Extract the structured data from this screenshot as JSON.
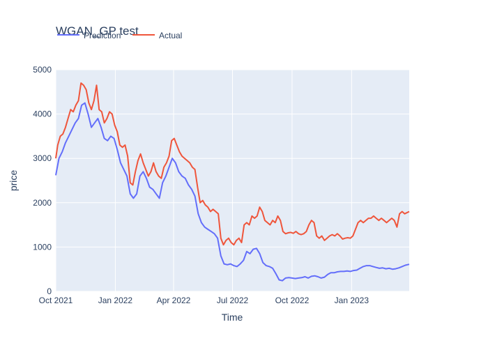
{
  "chart_data": {
    "type": "line",
    "title": "WGAN_GP test",
    "xlabel": "Time",
    "ylabel": "price",
    "x_tick_labels": [
      "Oct 2021",
      "Jan 2022",
      "Apr 2022",
      "Jul 2022",
      "Oct 2022",
      "Jan 2023"
    ],
    "x_tick_dates": [
      "2021-10-01",
      "2022-01-01",
      "2022-04-01",
      "2022-07-01",
      "2022-10-01",
      "2023-01-01"
    ],
    "x_range": [
      "2021-10-01",
      "2023-03-31"
    ],
    "ylim": [
      0,
      5000
    ],
    "y_ticks": [
      0,
      1000,
      2000,
      3000,
      4000,
      5000
    ],
    "grid": true,
    "legend_position": "top-left, horizontal",
    "colors": {
      "plot_bg": "#e5ecf6",
      "grid": "#ffffff",
      "Prediction": "#636efa",
      "Actual": "#ef553b"
    },
    "series": [
      {
        "name": "Prediction",
        "points": [
          [
            "2021-10-01",
            2620
          ],
          [
            "2021-10-06",
            3000
          ],
          [
            "2021-10-11",
            3150
          ],
          [
            "2021-10-16",
            3350
          ],
          [
            "2021-10-21",
            3500
          ],
          [
            "2021-10-26",
            3650
          ],
          [
            "2021-10-31",
            3800
          ],
          [
            "2021-11-05",
            3900
          ],
          [
            "2021-11-10",
            4200
          ],
          [
            "2021-11-15",
            4250
          ],
          [
            "2021-11-20",
            4000
          ],
          [
            "2021-11-25",
            3700
          ],
          [
            "2021-11-30",
            3800
          ],
          [
            "2021-12-05",
            3900
          ],
          [
            "2021-12-10",
            3700
          ],
          [
            "2021-12-15",
            3450
          ],
          [
            "2021-12-20",
            3400
          ],
          [
            "2021-12-25",
            3500
          ],
          [
            "2021-12-30",
            3450
          ],
          [
            "2022-01-04",
            3200
          ],
          [
            "2022-01-09",
            2900
          ],
          [
            "2022-01-14",
            2750
          ],
          [
            "2022-01-19",
            2600
          ],
          [
            "2022-01-24",
            2200
          ],
          [
            "2022-01-29",
            2100
          ],
          [
            "2022-02-03",
            2200
          ],
          [
            "2022-02-08",
            2600
          ],
          [
            "2022-02-13",
            2700
          ],
          [
            "2022-02-18",
            2550
          ],
          [
            "2022-02-23",
            2350
          ],
          [
            "2022-02-28",
            2300
          ],
          [
            "2022-03-05",
            2200
          ],
          [
            "2022-03-10",
            2100
          ],
          [
            "2022-03-15",
            2450
          ],
          [
            "2022-03-20",
            2600
          ],
          [
            "2022-03-25",
            2800
          ],
          [
            "2022-03-30",
            3000
          ],
          [
            "2022-04-04",
            2900
          ],
          [
            "2022-04-09",
            2700
          ],
          [
            "2022-04-14",
            2600
          ],
          [
            "2022-04-19",
            2550
          ],
          [
            "2022-04-24",
            2400
          ],
          [
            "2022-04-29",
            2300
          ],
          [
            "2022-05-04",
            2150
          ],
          [
            "2022-05-09",
            1750
          ],
          [
            "2022-05-14",
            1550
          ],
          [
            "2022-05-19",
            1450
          ],
          [
            "2022-05-24",
            1400
          ],
          [
            "2022-05-29",
            1350
          ],
          [
            "2022-06-03",
            1300
          ],
          [
            "2022-06-08",
            1200
          ],
          [
            "2022-06-13",
            800
          ],
          [
            "2022-06-18",
            620
          ],
          [
            "2022-06-23",
            600
          ],
          [
            "2022-06-28",
            620
          ],
          [
            "2022-07-03",
            580
          ],
          [
            "2022-07-08",
            560
          ],
          [
            "2022-07-13",
            620
          ],
          [
            "2022-07-18",
            700
          ],
          [
            "2022-07-23",
            900
          ],
          [
            "2022-07-28",
            850
          ],
          [
            "2022-08-02",
            950
          ],
          [
            "2022-08-07",
            970
          ],
          [
            "2022-08-12",
            850
          ],
          [
            "2022-08-17",
            650
          ],
          [
            "2022-08-22",
            580
          ],
          [
            "2022-08-27",
            560
          ],
          [
            "2022-09-01",
            520
          ],
          [
            "2022-09-06",
            400
          ],
          [
            "2022-09-11",
            260
          ],
          [
            "2022-09-16",
            240
          ],
          [
            "2022-09-21",
            300
          ],
          [
            "2022-09-26",
            310
          ],
          [
            "2022-10-01",
            300
          ],
          [
            "2022-10-06",
            290
          ],
          [
            "2022-10-11",
            300
          ],
          [
            "2022-10-16",
            310
          ],
          [
            "2022-10-21",
            330
          ],
          [
            "2022-10-26",
            300
          ],
          [
            "2022-10-31",
            340
          ],
          [
            "2022-11-05",
            350
          ],
          [
            "2022-11-10",
            330
          ],
          [
            "2022-11-15",
            300
          ],
          [
            "2022-11-20",
            320
          ],
          [
            "2022-11-25",
            380
          ],
          [
            "2022-11-30",
            420
          ],
          [
            "2022-12-05",
            420
          ],
          [
            "2022-12-10",
            440
          ],
          [
            "2022-12-15",
            450
          ],
          [
            "2022-12-20",
            450
          ],
          [
            "2022-12-25",
            460
          ],
          [
            "2022-12-30",
            450
          ],
          [
            "2023-01-04",
            470
          ],
          [
            "2023-01-09",
            480
          ],
          [
            "2023-01-14",
            520
          ],
          [
            "2023-01-19",
            560
          ],
          [
            "2023-01-24",
            580
          ],
          [
            "2023-01-29",
            580
          ],
          [
            "2023-02-03",
            560
          ],
          [
            "2023-02-08",
            540
          ],
          [
            "2023-02-13",
            520
          ],
          [
            "2023-02-18",
            530
          ],
          [
            "2023-02-23",
            510
          ],
          [
            "2023-02-28",
            520
          ],
          [
            "2023-03-05",
            500
          ],
          [
            "2023-03-10",
            510
          ],
          [
            "2023-03-15",
            530
          ],
          [
            "2023-03-20",
            560
          ],
          [
            "2023-03-25",
            590
          ],
          [
            "2023-03-31",
            610
          ]
        ]
      },
      {
        "name": "Actual",
        "points": [
          [
            "2021-10-01",
            3000
          ],
          [
            "2021-10-04",
            3300
          ],
          [
            "2021-10-08",
            3500
          ],
          [
            "2021-10-12",
            3550
          ],
          [
            "2021-10-16",
            3700
          ],
          [
            "2021-10-20",
            3900
          ],
          [
            "2021-10-24",
            4100
          ],
          [
            "2021-10-28",
            4050
          ],
          [
            "2021-11-01",
            4200
          ],
          [
            "2021-11-05",
            4300
          ],
          [
            "2021-11-09",
            4700
          ],
          [
            "2021-11-13",
            4650
          ],
          [
            "2021-11-17",
            4550
          ],
          [
            "2021-11-21",
            4250
          ],
          [
            "2021-11-25",
            4100
          ],
          [
            "2021-11-29",
            4300
          ],
          [
            "2021-12-03",
            4650
          ],
          [
            "2021-12-07",
            4100
          ],
          [
            "2021-12-11",
            4050
          ],
          [
            "2021-12-15",
            3800
          ],
          [
            "2021-12-19",
            3900
          ],
          [
            "2021-12-23",
            4050
          ],
          [
            "2021-12-27",
            4000
          ],
          [
            "2021-12-31",
            3750
          ],
          [
            "2022-01-04",
            3600
          ],
          [
            "2022-01-08",
            3300
          ],
          [
            "2022-01-12",
            3250
          ],
          [
            "2022-01-16",
            3300
          ],
          [
            "2022-01-20",
            3050
          ],
          [
            "2022-01-24",
            2450
          ],
          [
            "2022-01-28",
            2400
          ],
          [
            "2022-02-01",
            2700
          ],
          [
            "2022-02-05",
            2950
          ],
          [
            "2022-02-09",
            3100
          ],
          [
            "2022-02-13",
            2900
          ],
          [
            "2022-02-17",
            2750
          ],
          [
            "2022-02-21",
            2600
          ],
          [
            "2022-02-25",
            2700
          ],
          [
            "2022-03-01",
            2900
          ],
          [
            "2022-03-05",
            2700
          ],
          [
            "2022-03-09",
            2600
          ],
          [
            "2022-03-13",
            2550
          ],
          [
            "2022-03-17",
            2800
          ],
          [
            "2022-03-21",
            2900
          ],
          [
            "2022-03-25",
            3050
          ],
          [
            "2022-03-29",
            3400
          ],
          [
            "2022-04-02",
            3450
          ],
          [
            "2022-04-06",
            3300
          ],
          [
            "2022-04-10",
            3150
          ],
          [
            "2022-04-14",
            3050
          ],
          [
            "2022-04-18",
            3000
          ],
          [
            "2022-04-22",
            2950
          ],
          [
            "2022-04-26",
            2900
          ],
          [
            "2022-04-30",
            2800
          ],
          [
            "2022-05-04",
            2750
          ],
          [
            "2022-05-08",
            2350
          ],
          [
            "2022-05-12",
            2000
          ],
          [
            "2022-05-16",
            2050
          ],
          [
            "2022-05-20",
            1950
          ],
          [
            "2022-05-24",
            1900
          ],
          [
            "2022-05-28",
            1800
          ],
          [
            "2022-06-01",
            1850
          ],
          [
            "2022-06-05",
            1800
          ],
          [
            "2022-06-09",
            1750
          ],
          [
            "2022-06-13",
            1200
          ],
          [
            "2022-06-17",
            1050
          ],
          [
            "2022-06-21",
            1150
          ],
          [
            "2022-06-25",
            1200
          ],
          [
            "2022-06-29",
            1100
          ],
          [
            "2022-07-03",
            1050
          ],
          [
            "2022-07-07",
            1150
          ],
          [
            "2022-07-11",
            1200
          ],
          [
            "2022-07-15",
            1100
          ],
          [
            "2022-07-19",
            1500
          ],
          [
            "2022-07-23",
            1550
          ],
          [
            "2022-07-27",
            1500
          ],
          [
            "2022-07-31",
            1700
          ],
          [
            "2022-08-04",
            1650
          ],
          [
            "2022-08-08",
            1700
          ],
          [
            "2022-08-12",
            1900
          ],
          [
            "2022-08-16",
            1800
          ],
          [
            "2022-08-20",
            1600
          ],
          [
            "2022-08-24",
            1550
          ],
          [
            "2022-08-28",
            1500
          ],
          [
            "2022-09-01",
            1600
          ],
          [
            "2022-09-05",
            1550
          ],
          [
            "2022-09-09",
            1700
          ],
          [
            "2022-09-13",
            1600
          ],
          [
            "2022-09-17",
            1350
          ],
          [
            "2022-09-21",
            1300
          ],
          [
            "2022-09-25",
            1320
          ],
          [
            "2022-09-29",
            1330
          ],
          [
            "2022-10-03",
            1310
          ],
          [
            "2022-10-07",
            1350
          ],
          [
            "2022-10-11",
            1300
          ],
          [
            "2022-10-15",
            1280
          ],
          [
            "2022-10-19",
            1300
          ],
          [
            "2022-10-23",
            1350
          ],
          [
            "2022-10-27",
            1500
          ],
          [
            "2022-10-31",
            1600
          ],
          [
            "2022-11-04",
            1550
          ],
          [
            "2022-11-08",
            1250
          ],
          [
            "2022-11-12",
            1200
          ],
          [
            "2022-11-16",
            1250
          ],
          [
            "2022-11-20",
            1150
          ],
          [
            "2022-11-24",
            1200
          ],
          [
            "2022-11-28",
            1250
          ],
          [
            "2022-12-02",
            1280
          ],
          [
            "2022-12-06",
            1250
          ],
          [
            "2022-12-10",
            1300
          ],
          [
            "2022-12-14",
            1250
          ],
          [
            "2022-12-18",
            1180
          ],
          [
            "2022-12-22",
            1200
          ],
          [
            "2022-12-26",
            1210
          ],
          [
            "2022-12-30",
            1200
          ],
          [
            "2023-01-03",
            1250
          ],
          [
            "2023-01-07",
            1400
          ],
          [
            "2023-01-11",
            1550
          ],
          [
            "2023-01-15",
            1600
          ],
          [
            "2023-01-19",
            1550
          ],
          [
            "2023-01-23",
            1600
          ],
          [
            "2023-01-27",
            1650
          ],
          [
            "2023-01-31",
            1650
          ],
          [
            "2023-02-04",
            1700
          ],
          [
            "2023-02-08",
            1650
          ],
          [
            "2023-02-12",
            1600
          ],
          [
            "2023-02-16",
            1650
          ],
          [
            "2023-02-20",
            1600
          ],
          [
            "2023-02-24",
            1550
          ],
          [
            "2023-02-28",
            1600
          ],
          [
            "2023-03-04",
            1650
          ],
          [
            "2023-03-08",
            1600
          ],
          [
            "2023-03-12",
            1450
          ],
          [
            "2023-03-16",
            1750
          ],
          [
            "2023-03-20",
            1800
          ],
          [
            "2023-03-24",
            1750
          ],
          [
            "2023-03-31",
            1800
          ]
        ]
      }
    ]
  }
}
